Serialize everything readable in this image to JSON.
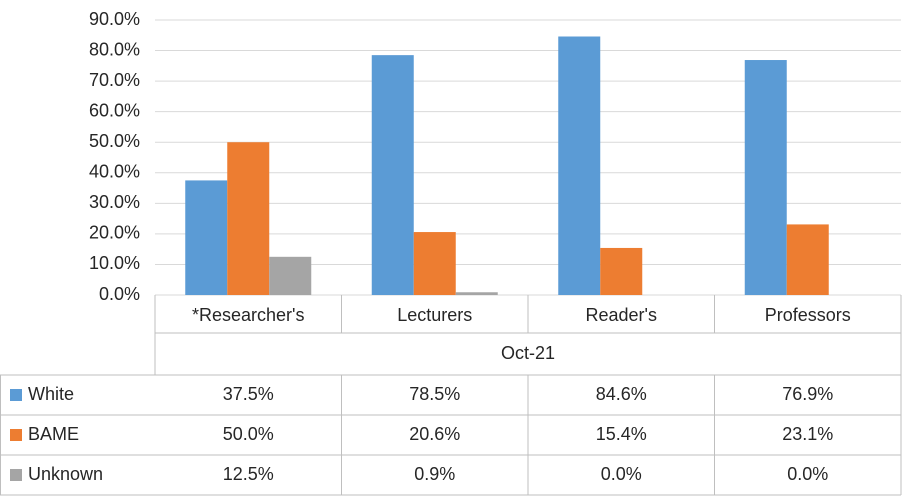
{
  "chart_data": {
    "type": "bar",
    "categories": [
      "*Researcher's",
      "Lecturers",
      "Reader's",
      "Professors"
    ],
    "group_label": "Oct-21",
    "series": [
      {
        "name": "White",
        "color": "#5b9bd5",
        "values": [
          37.5,
          78.5,
          84.6,
          76.9
        ],
        "value_labels": [
          "37.5%",
          "78.5%",
          "84.6%",
          "76.9%"
        ]
      },
      {
        "name": "BAME",
        "color": "#ed7d31",
        "values": [
          50.0,
          20.6,
          15.4,
          23.1
        ],
        "value_labels": [
          "50.0%",
          "20.6%",
          "15.4%",
          "23.1%"
        ]
      },
      {
        "name": "Unknown",
        "color": "#a5a5a5",
        "values": [
          12.5,
          0.9,
          0.0,
          0.0
        ],
        "value_labels": [
          "12.5%",
          "0.9%",
          "0.0%",
          "0.0%"
        ]
      }
    ],
    "ylim": [
      0,
      90
    ],
    "yticks": [
      {
        "value": 0,
        "label": "0.0%"
      },
      {
        "value": 10,
        "label": "10.0%"
      },
      {
        "value": 20,
        "label": "20.0%"
      },
      {
        "value": 30,
        "label": "30.0%"
      },
      {
        "value": 40,
        "label": "40.0%"
      },
      {
        "value": 50,
        "label": "50.0%"
      },
      {
        "value": 60,
        "label": "60.0%"
      },
      {
        "value": 70,
        "label": "70.0%"
      },
      {
        "value": 80,
        "label": "80.0%"
      },
      {
        "value": 90,
        "label": "90.0%"
      }
    ],
    "grid": true,
    "data_table": true
  }
}
